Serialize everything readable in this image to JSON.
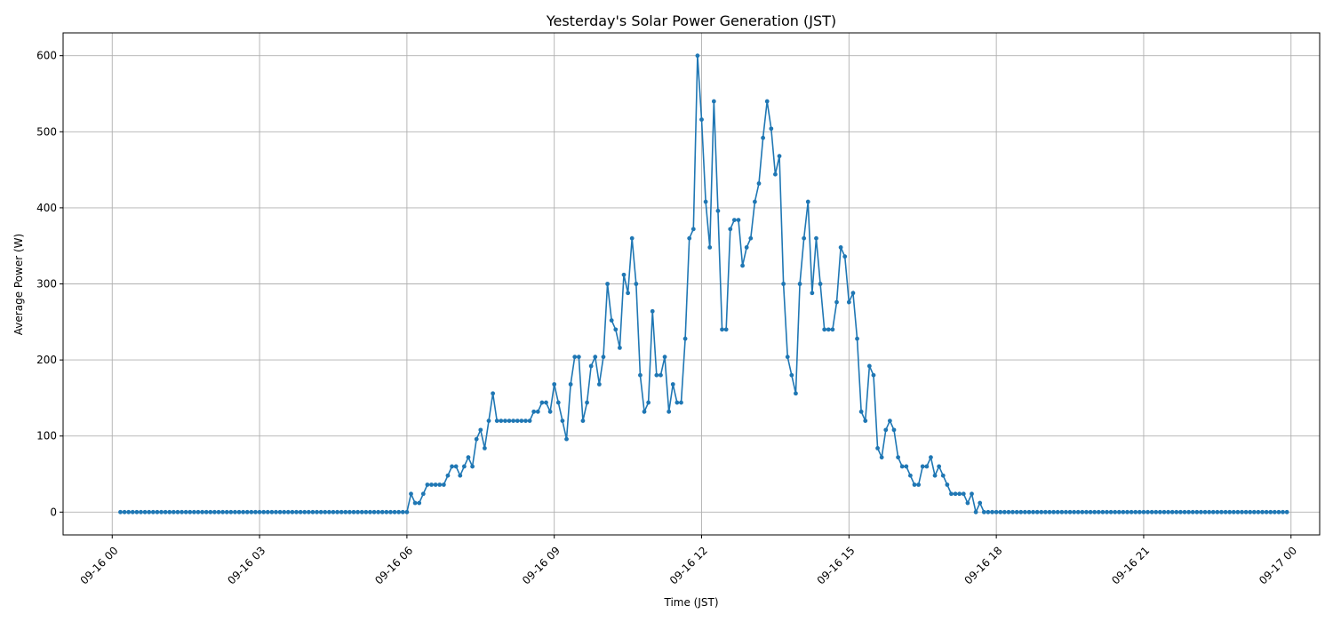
{
  "chart_data": {
    "type": "line",
    "title": "Yesterday's Solar Power Generation (JST)",
    "xlabel": "Time (JST)",
    "ylabel": "Average Power (W)",
    "x_start": "2024-09-16 00:10",
    "x_interval_minutes": 5,
    "xlim": [
      "2024-09-15 23:00",
      "2024-09-17 00:35"
    ],
    "ylim": [
      -30,
      630
    ],
    "x_ticks": [
      {
        "label": "09-16 00",
        "time": "2024-09-16 00:00"
      },
      {
        "label": "09-16 03",
        "time": "2024-09-16 03:00"
      },
      {
        "label": "09-16 06",
        "time": "2024-09-16 06:00"
      },
      {
        "label": "09-16 09",
        "time": "2024-09-16 09:00"
      },
      {
        "label": "09-16 12",
        "time": "2024-09-16 12:00"
      },
      {
        "label": "09-16 15",
        "time": "2024-09-16 15:00"
      },
      {
        "label": "09-16 18",
        "time": "2024-09-16 18:00"
      },
      {
        "label": "09-16 21",
        "time": "2024-09-16 21:00"
      },
      {
        "label": "09-17 00",
        "time": "2024-09-17 00:00"
      }
    ],
    "y_ticks": [
      0,
      100,
      200,
      300,
      400,
      500,
      600
    ],
    "grid": true,
    "colors": {
      "line": "#1f77b4"
    },
    "series": [
      {
        "values": [
          0,
          0,
          0,
          0,
          0,
          0,
          0,
          0,
          0,
          0,
          0,
          0,
          0,
          0,
          0,
          0,
          0,
          0,
          0,
          0,
          0,
          0,
          0,
          0,
          0,
          0,
          0,
          0,
          0,
          0,
          0,
          0,
          0,
          0,
          0,
          0,
          0,
          0,
          0,
          0,
          0,
          0,
          0,
          0,
          0,
          0,
          0,
          0,
          0,
          0,
          0,
          0,
          0,
          0,
          0,
          0,
          0,
          0,
          0,
          0,
          0,
          0,
          0,
          0,
          0,
          0,
          0,
          0,
          0,
          0,
          0,
          24,
          12,
          12,
          24,
          36,
          36,
          36,
          36,
          36,
          48,
          60,
          60,
          48,
          60,
          72,
          60,
          96,
          108,
          84,
          120,
          156,
          120,
          120,
          120,
          120,
          120,
          120,
          120,
          120,
          120,
          132,
          132,
          144,
          144,
          132,
          168,
          144,
          120,
          96,
          168,
          204,
          204,
          120,
          144,
          192,
          204,
          168,
          204,
          300,
          252,
          240,
          216,
          312,
          288,
          360,
          300,
          180,
          132,
          144,
          264,
          180,
          180,
          204,
          132,
          168,
          144,
          144,
          228,
          360,
          372,
          600,
          516,
          408,
          348,
          540,
          396,
          240,
          240,
          372,
          384,
          384,
          324,
          348,
          360,
          408,
          432,
          492,
          540,
          504,
          444,
          468,
          300,
          204,
          180,
          156,
          300,
          360,
          408,
          288,
          360,
          300,
          240,
          240,
          240,
          276,
          348,
          336,
          276,
          288,
          228,
          132,
          120,
          192,
          180,
          84,
          72,
          108,
          120,
          108,
          72,
          60,
          60,
          48,
          36,
          36,
          60,
          60,
          72,
          48,
          60,
          48,
          36,
          24,
          24,
          24,
          24,
          12,
          24,
          0,
          12,
          0,
          0,
          0,
          0,
          0,
          0,
          0,
          0,
          0,
          0,
          0,
          0,
          0,
          0,
          0,
          0,
          0,
          0,
          0,
          0,
          0,
          0,
          0,
          0,
          0,
          0,
          0,
          0,
          0,
          0,
          0,
          0,
          0,
          0,
          0,
          0,
          0,
          0,
          0,
          0,
          0,
          0,
          0,
          0,
          0,
          0,
          0,
          0,
          0,
          0,
          0,
          0,
          0,
          0,
          0,
          0,
          0,
          0,
          0,
          0,
          0,
          0,
          0,
          0,
          0,
          0,
          0,
          0,
          0,
          0,
          0,
          0,
          0,
          0,
          0
        ]
      }
    ]
  }
}
